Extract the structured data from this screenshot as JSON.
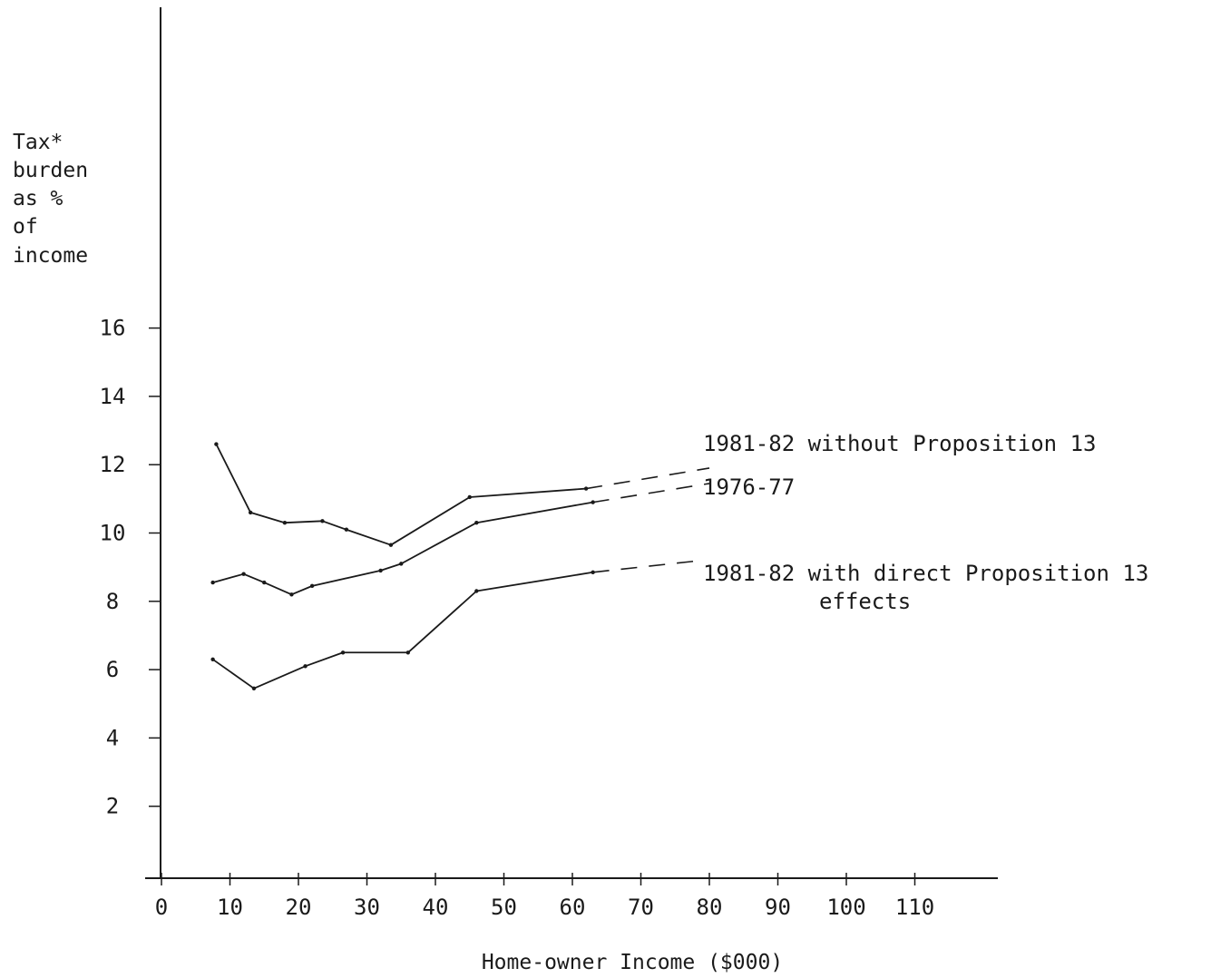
{
  "chart_data": {
    "type": "line",
    "ylabel_lines": [
      "Tax*",
      "burden",
      "as %",
      "of",
      "income"
    ],
    "xlabel": "Home-owner Income ($000)",
    "xlim": [
      0,
      120
    ],
    "ylim": [
      0,
      16
    ],
    "x_ticks": [
      {
        "v": 0,
        "label": "0"
      },
      {
        "v": 10,
        "label": "10"
      },
      {
        "v": 20,
        "label": "20"
      },
      {
        "v": 30,
        "label": "30"
      },
      {
        "v": 40,
        "label": "40"
      },
      {
        "v": 50,
        "label": "50"
      },
      {
        "v": 60,
        "label": "60"
      },
      {
        "v": 70,
        "label": "70"
      },
      {
        "v": 80,
        "label": "80"
      },
      {
        "v": 90,
        "label": "90"
      },
      {
        "v": 100,
        "label": "100"
      },
      {
        "v": 110,
        "label": "110"
      }
    ],
    "y_ticks": [
      {
        "v": 2,
        "label": "2"
      },
      {
        "v": 4,
        "label": "4"
      },
      {
        "v": 6,
        "label": "6"
      },
      {
        "v": 8,
        "label": "8"
      },
      {
        "v": 10,
        "label": "10"
      },
      {
        "v": 12,
        "label": "12"
      },
      {
        "v": 14,
        "label": "14"
      },
      {
        "v": 16,
        "label": "16"
      }
    ],
    "grid": false,
    "legend": "labels at line ends (right)",
    "series": [
      {
        "name": "1981-82 without Proposition 13",
        "label_lines": [
          "1981-82 without Proposition 13"
        ],
        "points": [
          [
            8,
            12.6
          ],
          [
            13,
            10.6
          ],
          [
            18,
            10.3
          ],
          [
            23.5,
            10.35
          ],
          [
            27,
            10.1
          ],
          [
            33.5,
            9.65
          ],
          [
            45,
            11.05
          ],
          [
            62,
            11.3
          ]
        ],
        "dashed_extension": [
          [
            62,
            11.3
          ],
          [
            80,
            11.9
          ]
        ]
      },
      {
        "name": "1976-77",
        "label_lines": [
          "1976-77"
        ],
        "points": [
          [
            7.5,
            8.55
          ],
          [
            12,
            8.8
          ],
          [
            15,
            8.55
          ],
          [
            19,
            8.2
          ],
          [
            22,
            8.45
          ],
          [
            32,
            8.9
          ],
          [
            35,
            9.1
          ],
          [
            46,
            10.3
          ],
          [
            63,
            10.9
          ]
        ],
        "dashed_extension": [
          [
            63,
            10.9
          ],
          [
            80,
            11.45
          ]
        ]
      },
      {
        "name": "1981-82 with direct Proposition 13 effects",
        "label_lines": [
          "1981-82 with direct Proposition 13",
          "effects"
        ],
        "points": [
          [
            7.5,
            6.3
          ],
          [
            13.5,
            5.45
          ],
          [
            21,
            6.1
          ],
          [
            26.5,
            6.5
          ],
          [
            36,
            6.5
          ],
          [
            46,
            8.3
          ],
          [
            63,
            8.85
          ]
        ],
        "dashed_extension": [
          [
            63,
            8.85
          ],
          [
            79,
            9.2
          ]
        ]
      }
    ]
  }
}
